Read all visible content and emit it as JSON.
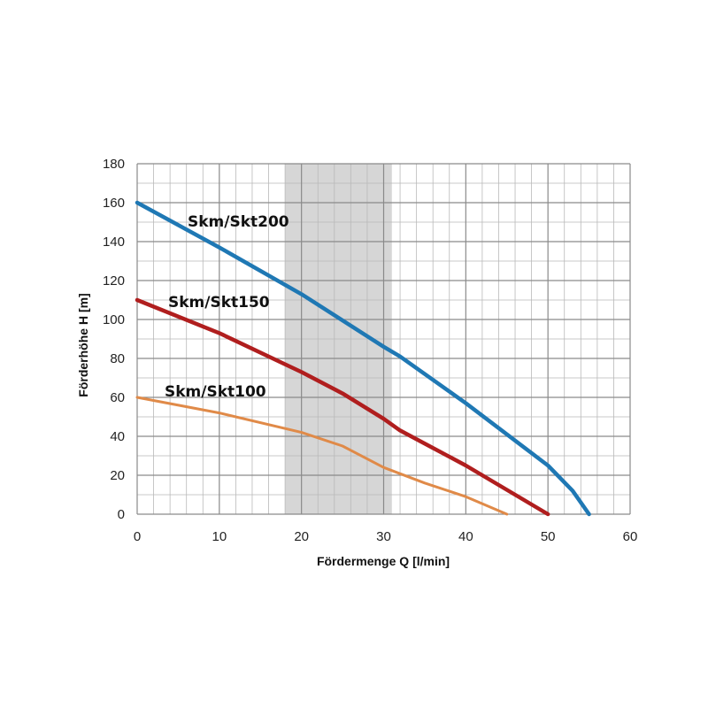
{
  "chart_data": {
    "type": "line",
    "xlabel": "Fördermenge Q [l/min]",
    "ylabel": "Förderhöhe H [m]",
    "xlim": [
      0,
      60
    ],
    "ylim": [
      0,
      180
    ],
    "x_ticks": [
      "0",
      "10",
      "20",
      "30",
      "40",
      "50",
      "60"
    ],
    "y_ticks": [
      "0",
      "20",
      "40",
      "60",
      "80",
      "100",
      "120",
      "140",
      "160",
      "180"
    ],
    "grid": true,
    "highlight_band": {
      "x_from": 18,
      "x_to": 31,
      "color": "#d6d6d6"
    },
    "series": [
      {
        "name": "Skm/Skt200",
        "color": "#1f78b4",
        "x": [
          0,
          10,
          20,
          30,
          32,
          40,
          50,
          53,
          55
        ],
        "y": [
          160,
          137,
          113,
          86,
          81,
          57,
          25,
          12,
          0
        ]
      },
      {
        "name": "Skm/Skt150",
        "color": "#b01e1e",
        "x": [
          0,
          10,
          18,
          20,
          25,
          30,
          32,
          40,
          50
        ],
        "y": [
          110,
          93,
          77,
          73,
          62,
          49,
          43,
          25,
          0
        ]
      },
      {
        "name": "Skm/Skt100",
        "color": "#e08a48",
        "x": [
          0,
          10,
          20,
          25,
          30,
          35,
          40,
          45
        ],
        "y": [
          60,
          52,
          42,
          35,
          24,
          16,
          9,
          0
        ]
      }
    ]
  }
}
